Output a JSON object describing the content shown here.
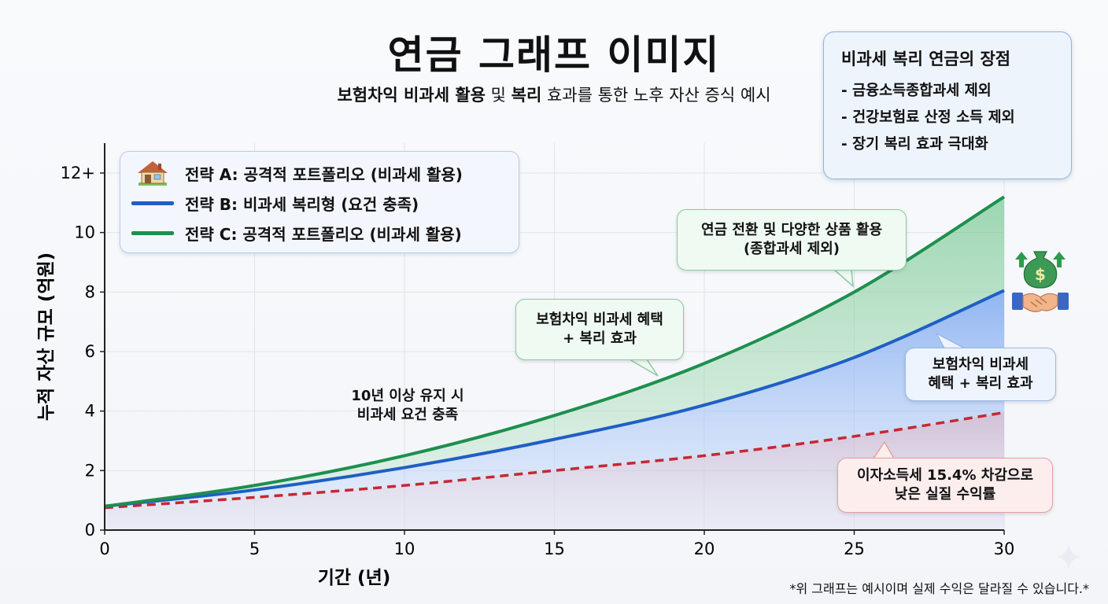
{
  "title": "연금 그래프 이미지",
  "subtitle": {
    "part1": "보험차익 비과세 활용",
    "part2": " 및 ",
    "part3": "복리",
    "part4": " 효과를 통한 노후 자산 증식 예시"
  },
  "info_box": {
    "title": "비과세 복리 연금의 장점",
    "items": [
      "- 금융소득종합과세 제외",
      "- 건강보험료 산정 소득 제외",
      "- 장기 복리 효과 극대화"
    ]
  },
  "legend": {
    "a": "전략 A: 공격적 포트폴리오 (비과세 활용)",
    "b": "전략 B: 비과세 복리형 (요건 충족)",
    "c": "전략 C: 공격적 포트폴리오 (비과세 활용)"
  },
  "annotations": {
    "green_callout": [
      "연금 전환 및 다양한 상품 활용",
      "(종합과세 제외)"
    ],
    "mid_callout": [
      "보험차익 비과세 혜택",
      "+ 복리 효과"
    ],
    "right_callout": [
      "보험차익 비과세",
      "혜택 + 복리 효과"
    ],
    "red_callout": [
      "이자소득세 15.4% 차감으로",
      "낮은 실질 수익률"
    ],
    "plain_note": [
      "10년 이상 유지 시",
      "비과세 요건 충족"
    ]
  },
  "footnote": "*위 그래프는 예시이며 실제 수익은 달라질 수 있습니다.*",
  "colors": {
    "blue": "#1f5fc4",
    "green": "#1e8f4e",
    "red": "#c62832"
  },
  "icons": [
    "house-icon",
    "money-bag-handshake-icon",
    "sparkle-icon"
  ],
  "chart_data": {
    "type": "line",
    "xlabel": "기간 (년)",
    "ylabel": "누적 자산 규모 (억원)",
    "xlim": [
      0,
      30
    ],
    "ylim": [
      0,
      12.5
    ],
    "x_ticks": [
      0,
      5,
      10,
      15,
      20,
      25,
      30
    ],
    "y_ticks": [
      0,
      2,
      4,
      6,
      8,
      10
    ],
    "y_tick_labels": [
      "0",
      "2",
      "4",
      "6",
      "8",
      "10"
    ],
    "y_top_label": "12+",
    "y_top_value": 12,
    "grid": true,
    "x": [
      0,
      5,
      10,
      15,
      20,
      25,
      30
    ],
    "series": [
      {
        "key": "b",
        "style": "solid",
        "values": [
          0.8,
          1.35,
          2.1,
          3.05,
          4.2,
          5.8,
          8.05
        ]
      },
      {
        "key": "c",
        "style": "solid",
        "values": [
          0.8,
          1.5,
          2.5,
          3.85,
          5.6,
          8.0,
          11.2
        ]
      },
      {
        "key": "red",
        "style": "dashed",
        "values": [
          0.75,
          1.1,
          1.5,
          2.0,
          2.5,
          3.15,
          3.95
        ]
      }
    ]
  }
}
